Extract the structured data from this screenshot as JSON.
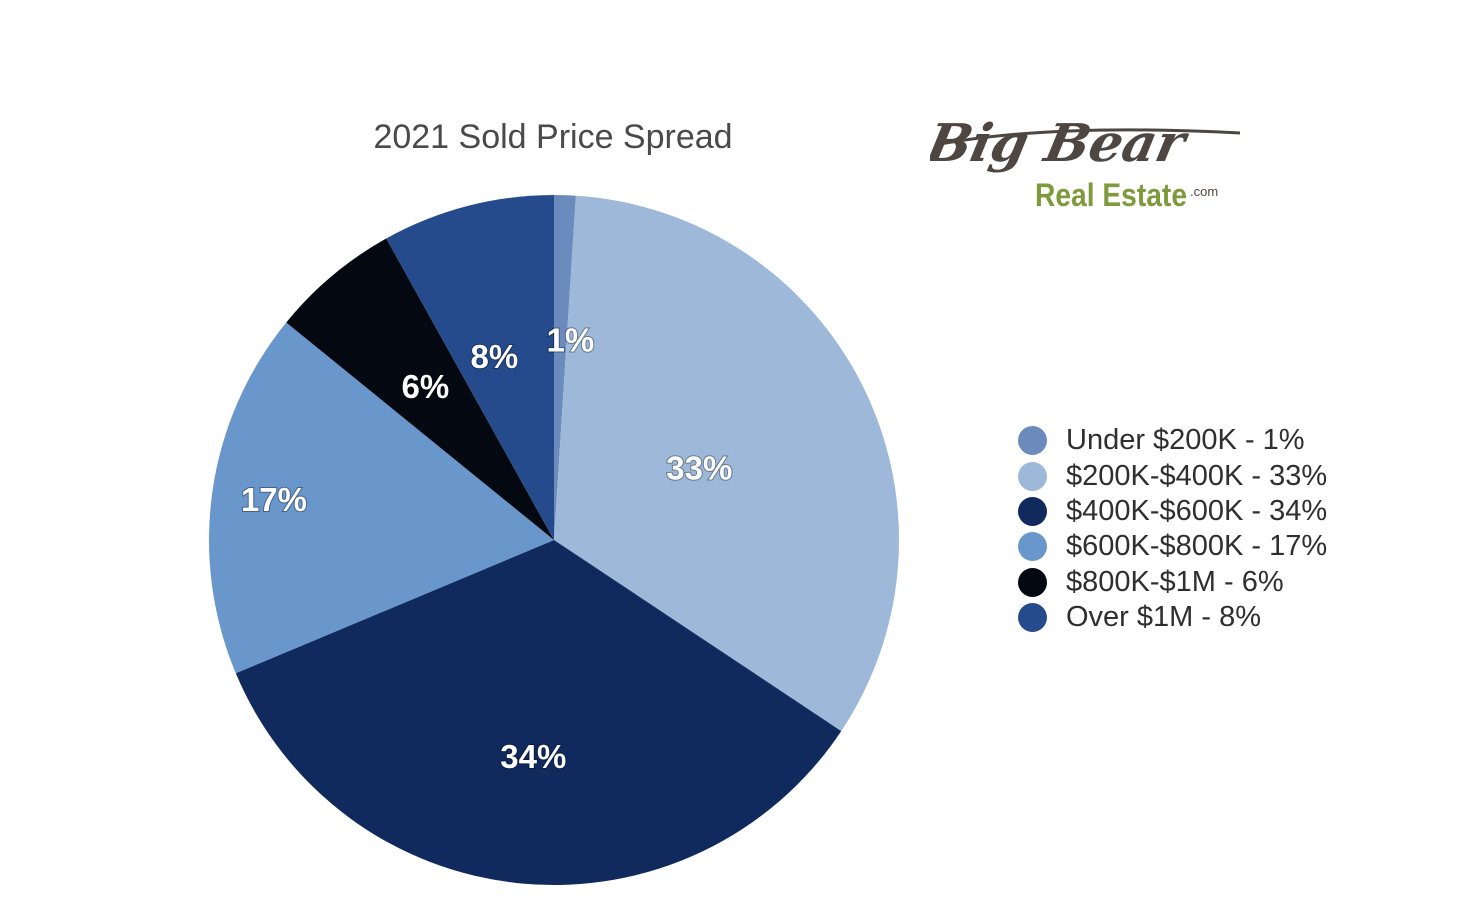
{
  "chart_data": {
    "type": "pie",
    "title": "2021 Sold Price Spread",
    "categories": [
      "Under $200K",
      "$200K-$400K",
      "$400K-$600K",
      "$600K-$800K",
      "$800K-$1M",
      "Over $1M"
    ],
    "values": [
      1,
      33,
      34,
      17,
      6,
      8
    ],
    "labels": [
      "1%",
      "33%",
      "34%",
      "17%",
      "6%",
      "8%"
    ],
    "legend_labels": [
      "Under $200K - 1%",
      "$200K-$400K - 33%",
      "$400K-$600K - 34%",
      "$600K-$800K - 17%",
      "$800K-$1M - 6%",
      "Over $1M - 8%"
    ],
    "colors": [
      "#6b8bbd",
      "#9db8d9",
      "#102a5e",
      "#6997cc",
      "#040810",
      "#264b8c"
    ],
    "legend_position": "right"
  },
  "logo": {
    "line1": "Big Bear",
    "line2": "Real Estate",
    "suffix": ".com",
    "colors": {
      "script": "#4e4640",
      "text": "#7e9a3c"
    }
  }
}
